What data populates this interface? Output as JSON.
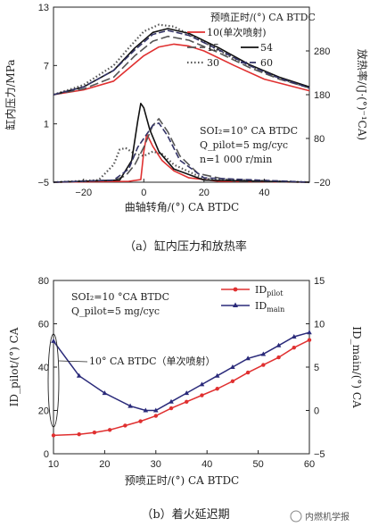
{
  "chart_data": [
    {
      "type": "line",
      "caption": "（a）缸内压力和放热率",
      "xlabel": "曲轴转角/(°) CA BTDC",
      "ylabel_left": "缸内压力/MPa",
      "ylabel_right": "放热率/(J·(°)⁻¹CA)",
      "xlim": [
        -30,
        55
      ],
      "xticks": [
        "−20",
        "0",
        "20",
        "40"
      ],
      "yticks_left": [
        "−5",
        "1",
        "7",
        "13"
      ],
      "yticks_right": [
        "−20",
        "80",
        "180",
        "280"
      ],
      "annotations": [
        "SOI₂=10° CA BTDC",
        "Q_pilot=5 mg/cyc",
        "n=1 000 r/min"
      ],
      "legend_title": "预喷正时/(°) CA BTDC",
      "series": [
        {
          "name": "10(单次喷射)",
          "color": "#e03030",
          "dash": "solid",
          "pressure": [
            [
              -30,
              4.0
            ],
            [
              -20,
              4.5
            ],
            [
              -10,
              5.4
            ],
            [
              0,
              8.0
            ],
            [
              5,
              8.9
            ],
            [
              10,
              9.2
            ],
            [
              15,
              9.0
            ],
            [
              20,
              8.5
            ],
            [
              30,
              7.0
            ],
            [
              40,
              5.6
            ],
            [
              55,
              4.4
            ]
          ],
          "heat_release": [
            [
              -30,
              -20
            ],
            [
              -5,
              -18
            ],
            [
              -1,
              -14
            ],
            [
              0,
              50
            ],
            [
              1,
              90
            ],
            [
              3,
              62
            ],
            [
              6,
              30
            ],
            [
              10,
              6
            ],
            [
              15,
              -10
            ],
            [
              25,
              -18
            ],
            [
              55,
              -20
            ]
          ]
        },
        {
          "name": "15",
          "color": "#555555",
          "dash": "long-dash",
          "pressure": [
            [
              -30,
              4.0
            ],
            [
              -20,
              4.6
            ],
            [
              -10,
              5.8
            ],
            [
              -3,
              8.0
            ],
            [
              3,
              9.5
            ],
            [
              8,
              10.0
            ],
            [
              15,
              9.6
            ],
            [
              25,
              8.3
            ],
            [
              35,
              6.8
            ],
            [
              45,
              5.6
            ],
            [
              55,
              4.7
            ]
          ],
          "heat_release": [
            [
              -30,
              -20
            ],
            [
              -10,
              -16
            ],
            [
              -6,
              -5
            ],
            [
              -3,
              20
            ],
            [
              0,
              60
            ],
            [
              3,
              110
            ],
            [
              5,
              125
            ],
            [
              8,
              95
            ],
            [
              12,
              40
            ],
            [
              18,
              0
            ],
            [
              30,
              -18
            ],
            [
              55,
              -20
            ]
          ]
        },
        {
          "name": "30",
          "color": "#555555",
          "dash": "dotted",
          "pressure": [
            [
              -30,
              4.0
            ],
            [
              -20,
              5.0
            ],
            [
              -10,
              7.0
            ],
            [
              -5,
              8.8
            ],
            [
              0,
              10.5
            ],
            [
              5,
              11.2
            ],
            [
              10,
              11.0
            ],
            [
              20,
              9.4
            ],
            [
              30,
              7.7
            ],
            [
              45,
              5.7
            ],
            [
              55,
              4.7
            ]
          ],
          "heat_release": [
            [
              -30,
              -20
            ],
            [
              -15,
              -15
            ],
            [
              -10,
              20
            ],
            [
              -8,
              55
            ],
            [
              -6,
              58
            ],
            [
              -3,
              45
            ],
            [
              0,
              40
            ],
            [
              3,
              50
            ],
            [
              6,
              45
            ],
            [
              10,
              20
            ],
            [
              20,
              -12
            ],
            [
              55,
              -20
            ]
          ]
        },
        {
          "name": "54",
          "color": "#111111",
          "dash": "solid",
          "pressure": [
            [
              -30,
              4.0
            ],
            [
              -20,
              4.8
            ],
            [
              -10,
              6.5
            ],
            [
              -3,
              8.8
            ],
            [
              3,
              10.4
            ],
            [
              8,
              10.8
            ],
            [
              15,
              10.3
            ],
            [
              25,
              8.8
            ],
            [
              35,
              7.1
            ],
            [
              45,
              5.8
            ],
            [
              55,
              4.8
            ]
          ],
          "heat_release": [
            [
              -30,
              -20
            ],
            [
              -8,
              -15
            ],
            [
              -4,
              30
            ],
            [
              -2,
              120
            ],
            [
              -1,
              160
            ],
            [
              0,
              150
            ],
            [
              2,
              100
            ],
            [
              5,
              50
            ],
            [
              10,
              10
            ],
            [
              20,
              -15
            ],
            [
              55,
              -20
            ]
          ]
        },
        {
          "name": "60",
          "color": "#333366",
          "dash": "dash",
          "pressure": [
            [
              -30,
              4.0
            ],
            [
              -20,
              4.8
            ],
            [
              -10,
              6.5
            ],
            [
              -3,
              8.6
            ],
            [
              3,
              10.2
            ],
            [
              8,
              10.6
            ],
            [
              15,
              10.1
            ],
            [
              25,
              8.6
            ],
            [
              35,
              7.0
            ],
            [
              45,
              5.7
            ],
            [
              55,
              4.7
            ]
          ],
          "heat_release": [
            [
              -30,
              -20
            ],
            [
              -10,
              -15
            ],
            [
              -5,
              10
            ],
            [
              -2,
              60
            ],
            [
              0,
              80
            ],
            [
              3,
              110
            ],
            [
              5,
              115
            ],
            [
              8,
              85
            ],
            [
              12,
              30
            ],
            [
              20,
              -10
            ],
            [
              55,
              -20
            ]
          ]
        }
      ]
    },
    {
      "type": "line",
      "caption": "（b）着火延迟期",
      "xlabel": "预喷正时/(°) CA BTDC",
      "ylabel_left": "ID_pilot/(°) CA",
      "ylabel_right": "ID_main/(°) CA",
      "xlim": [
        10,
        60
      ],
      "ylim_left": [
        0,
        80
      ],
      "ylim_right": [
        -5,
        15
      ],
      "xticks": [
        "10",
        "20",
        "30",
        "40",
        "50",
        "60"
      ],
      "yticks_left": [
        "0",
        "20",
        "40",
        "60",
        "80"
      ],
      "yticks_right": [
        "−5",
        "0",
        "5",
        "10",
        "15"
      ],
      "annotations": [
        "SOI₂=10 °CA BTDC",
        "Q_pilot=5 mg/cyc",
        "10° CA BTDC（单次喷射）"
      ],
      "series": [
        {
          "name": "ID_pilot",
          "axis": "left",
          "color": "#e03030",
          "marker": "circle",
          "x": [
            10,
            15,
            18,
            21,
            24,
            27,
            30,
            33,
            36,
            39,
            42,
            45,
            48,
            51,
            54,
            57,
            60
          ],
          "y": [
            8.5,
            9.0,
            9.8,
            11.0,
            13.0,
            15.0,
            17.5,
            21.0,
            24.0,
            27.0,
            30.0,
            33.5,
            37.5,
            41.0,
            44.5,
            49.0,
            52.5
          ]
        },
        {
          "name": "ID_main",
          "axis": "right",
          "color": "#2a2a7a",
          "marker": "triangle",
          "x": [
            10,
            15,
            20,
            25,
            28,
            30,
            33,
            36,
            39,
            42,
            45,
            48,
            51,
            54,
            57,
            60
          ],
          "y": [
            8.0,
            4.0,
            2.0,
            0.5,
            0.0,
            0.0,
            1.0,
            2.0,
            3.0,
            4.0,
            5.0,
            6.0,
            6.5,
            7.5,
            8.5,
            9.0
          ]
        }
      ]
    }
  ],
  "watermark": "内燃机学报"
}
